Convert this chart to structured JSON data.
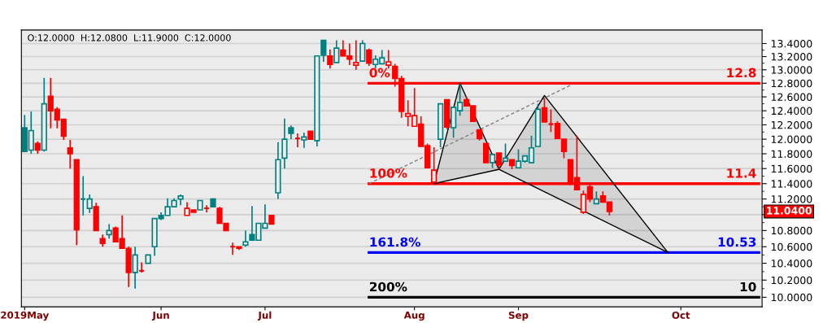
{
  "chart_data": {
    "type": "candlestick",
    "log": true,
    "grid": "y",
    "legend": false,
    "categories": [
      "2019May",
      null,
      null,
      null,
      null,
      null,
      null,
      null,
      null,
      null,
      null,
      null,
      null,
      null,
      null,
      null,
      null,
      null,
      null,
      null,
      null,
      "Jun",
      null,
      null,
      null,
      null,
      null,
      null,
      null,
      null,
      null,
      null,
      null,
      null,
      null,
      null,
      null,
      "Jul",
      null,
      null,
      null,
      null,
      null,
      null,
      null,
      null,
      null,
      null,
      null,
      null,
      null,
      null,
      null,
      null,
      null,
      null,
      null,
      null,
      null,
      null,
      "Aug",
      null,
      null,
      null,
      null,
      null,
      null,
      null,
      null,
      null,
      null,
      null,
      null,
      null,
      null,
      null,
      "Sep",
      null,
      null,
      null,
      null,
      null,
      null,
      null,
      null,
      null,
      null,
      null,
      null,
      null,
      null,
      null,
      null,
      null,
      null,
      null,
      null,
      null,
      null,
      null,
      null,
      "Oct",
      null,
      null,
      null,
      null,
      null,
      null,
      null,
      null,
      null,
      null,
      null,
      null
    ],
    "ohlc": [
      [
        12.16,
        12.34,
        11.83,
        11.83
      ],
      [
        11.85,
        12.39,
        11.8,
        12.12
      ],
      [
        11.94,
        11.97,
        11.8,
        11.85
      ],
      [
        11.85,
        12.88,
        11.83,
        12.5
      ],
      [
        12.61,
        12.88,
        12.15,
        12.4
      ],
      [
        12.42,
        12.45,
        12.15,
        12.27
      ],
      [
        12.28,
        12.28,
        11.99,
        12.04
      ],
      [
        11.88,
        11.99,
        11.6,
        11.8
      ],
      [
        11.72,
        11.72,
        10.62,
        10.81
      ],
      [
        11.2,
        11.5,
        10.99,
        11.2
      ],
      [
        11.08,
        11.26,
        11.02,
        11.2
      ],
      [
        11.1,
        11.15,
        10.8,
        10.8
      ],
      [
        10.7,
        10.75,
        10.6,
        10.64
      ],
      [
        10.75,
        10.88,
        10.7,
        10.8
      ],
      [
        10.83,
        10.85,
        10.66,
        10.66
      ],
      [
        10.7,
        10.99,
        10.58,
        10.58
      ],
      [
        10.58,
        10.6,
        10.12,
        10.29
      ],
      [
        10.29,
        10.6,
        10.1,
        10.5
      ],
      [
        10.31,
        10.41,
        10.29,
        10.31
      ],
      [
        10.4,
        10.5,
        10.4,
        10.5
      ],
      [
        10.6,
        10.95,
        10.49,
        10.95
      ],
      [
        10.99,
        11.03,
        10.93,
        10.95
      ],
      [
        10.99,
        11.21,
        10.99,
        11.1
      ],
      [
        11.1,
        11.21,
        11.1,
        11.18
      ],
      [
        11.2,
        11.26,
        11.12,
        11.24
      ],
      [
        10.99,
        11.16,
        10.99,
        11.08
      ],
      [
        11.06,
        11.06,
        11.03,
        11.03
      ],
      [
        11.06,
        11.18,
        11.06,
        11.18
      ],
      [
        11.08,
        11.12,
        11.03,
        11.08
      ],
      [
        11.2,
        11.21,
        11.1,
        11.1
      ],
      [
        11.08,
        11.1,
        10.89,
        10.89
      ],
      [
        10.89,
        10.89,
        10.8,
        10.8
      ],
      [
        10.6,
        10.65,
        10.5,
        10.6
      ],
      [
        10.6,
        10.6,
        10.56,
        10.58
      ],
      [
        10.62,
        10.8,
        10.6,
        10.66
      ],
      [
        10.75,
        11.11,
        10.68,
        10.68
      ],
      [
        10.68,
        10.89,
        10.68,
        10.89
      ],
      [
        10.83,
        11.13,
        10.83,
        10.89
      ],
      [
        10.99,
        10.99,
        10.88,
        10.88
      ],
      [
        11.28,
        11.96,
        11.2,
        11.72
      ],
      [
        11.74,
        12.29,
        11.6,
        12.0
      ],
      [
        12.16,
        12.19,
        12.0,
        12.08
      ],
      [
        12.01,
        12.08,
        11.89,
        12.01
      ],
      [
        11.99,
        12.09,
        11.88,
        12.03
      ],
      [
        12.11,
        12.11,
        12.0,
        12.0
      ],
      [
        11.98,
        13.21,
        11.9,
        13.21
      ],
      [
        13.45,
        13.45,
        13.12,
        13.22
      ],
      [
        13.21,
        13.31,
        13.02,
        13.08
      ],
      [
        13.11,
        13.45,
        13.11,
        13.33
      ],
      [
        13.3,
        13.45,
        13.2,
        13.21
      ],
      [
        13.21,
        13.4,
        13.07,
        13.16
      ],
      [
        13.07,
        13.45,
        13.0,
        13.11
      ],
      [
        13.13,
        13.45,
        13.13,
        13.4
      ],
      [
        13.3,
        13.32,
        13.06,
        13.1
      ],
      [
        13.08,
        13.22,
        13.02,
        13.16
      ],
      [
        13.09,
        13.3,
        13.08,
        13.18
      ],
      [
        13.07,
        13.3,
        13.02,
        13.12
      ],
      [
        13.05,
        13.09,
        12.75,
        12.87
      ],
      [
        12.87,
        12.91,
        12.3,
        12.39
      ],
      [
        12.32,
        12.55,
        12.18,
        12.36
      ],
      [
        12.18,
        12.73,
        12.18,
        12.33
      ],
      [
        12.21,
        12.32,
        11.9,
        11.9
      ],
      [
        11.91,
        11.94,
        11.61,
        11.61
      ],
      [
        11.42,
        11.89,
        11.4,
        11.58
      ],
      [
        12.0,
        12.5,
        11.89,
        12.5
      ],
      [
        12.56,
        12.56,
        12.14,
        12.17
      ],
      [
        12.16,
        12.45,
        12.02,
        12.45
      ],
      [
        12.4,
        12.8,
        12.33,
        12.52
      ],
      [
        12.56,
        12.6,
        12.47,
        12.47
      ],
      [
        12.47,
        12.47,
        12.25,
        12.25
      ],
      [
        12.13,
        12.13,
        11.98,
        12.01
      ],
      [
        11.94,
        11.94,
        11.68,
        11.68
      ],
      [
        11.68,
        11.79,
        11.61,
        11.79
      ],
      [
        11.81,
        11.81,
        11.59,
        11.65
      ],
      [
        11.7,
        11.94,
        11.7,
        11.74
      ],
      [
        11.72,
        11.72,
        11.59,
        11.64
      ],
      [
        11.61,
        11.86,
        11.61,
        11.7
      ],
      [
        11.7,
        11.77,
        11.68,
        11.77
      ],
      [
        11.68,
        12.05,
        11.68,
        11.88
      ],
      [
        11.9,
        12.5,
        11.9,
        12.42
      ],
      [
        12.44,
        12.58,
        12.24,
        12.24
      ],
      [
        12.21,
        12.42,
        12.1,
        12.21
      ],
      [
        12.22,
        12.25,
        12.0,
        12.01
      ],
      [
        12.0,
        12.0,
        11.74,
        11.83
      ],
      [
        11.72,
        11.72,
        11.38,
        11.41
      ],
      [
        11.48,
        12.05,
        11.32,
        11.32
      ],
      [
        11.03,
        11.31,
        11.01,
        11.26
      ],
      [
        11.36,
        11.39,
        11.16,
        11.2
      ],
      [
        11.14,
        11.3,
        11.14,
        11.2
      ],
      [
        11.24,
        11.3,
        11.16,
        11.16
      ],
      [
        11.16,
        11.16,
        10.99,
        11.04
      ],
      null,
      null,
      null,
      null,
      null,
      null,
      null,
      null,
      null,
      null,
      null,
      null,
      null,
      null,
      null,
      null,
      null,
      null,
      null,
      null,
      null,
      null,
      null
    ],
    "colors": [
      "#008080",
      "#008080",
      "#ff0000",
      "#008080",
      "#ff0000",
      "#ff0000",
      "#ff0000",
      "#ff0000",
      "#ff0000",
      "#008080",
      "#008080",
      "#ff0000",
      "#ff0000",
      "#008080",
      "#ff0000",
      "#ff0000",
      "#ff0000",
      "#008080",
      "#ff0000",
      "#008080",
      "#008080",
      "#008080",
      "#008080",
      "#008080",
      "#008080",
      "#ff0000",
      "#ff0000",
      "#008080",
      "#ff0000",
      "#008080",
      "#ff0000",
      "#ff0000",
      "#ff0000",
      "#ff0000",
      "#008080",
      "#008080",
      "#008080",
      "#008080",
      "#ff0000",
      "#008080",
      "#008080",
      "#008080",
      "#ff0000",
      "#008080",
      "#ff0000",
      "#008080",
      "#008080",
      "#ff0000",
      "#008080",
      "#ff0000",
      "#ff0000",
      "#ff0000",
      "#008080",
      "#ff0000",
      "#008080",
      "#008080",
      "#ff0000",
      "#ff0000",
      "#ff0000",
      "#ff0000",
      "#ff0000",
      "#ff0000",
      "#ff0000",
      "#ff0000",
      "#008080",
      "#ff0000",
      "#008080",
      "#008080",
      "#ff0000",
      "#ff0000",
      "#ff0000",
      "#ff0000",
      "#008080",
      "#ff0000",
      "#008080",
      "#ff0000",
      "#008080",
      "#008080",
      "#008080",
      "#008080",
      "#ff0000",
      "#ff0000",
      "#ff0000",
      "#ff0000",
      "#ff0000",
      "#ff0000",
      "#ff0000",
      "#ff0000",
      "#008080",
      "#ff0000",
      "#ff0000",
      null,
      null,
      null,
      null,
      null,
      null,
      null,
      null,
      null,
      null,
      null,
      null,
      null,
      null,
      null,
      null,
      null,
      null,
      null,
      null,
      null,
      null,
      null
    ],
    "series": [
      {
        "type": "line",
        "name": "0%",
        "color": "#ff0000",
        "values": [
          null,
          null,
          null,
          null,
          null,
          null,
          null,
          null,
          null,
          null,
          null,
          null,
          null,
          null,
          null,
          null,
          null,
          null,
          null,
          null,
          null,
          null,
          null,
          null,
          null,
          null,
          null,
          null,
          null,
          null,
          null,
          null,
          null,
          null,
          null,
          null,
          null,
          null,
          null,
          null,
          null,
          null,
          null,
          null,
          null,
          null,
          null,
          null,
          null,
          null,
          null,
          null,
          null,
          12.8,
          null,
          null,
          null,
          null,
          null,
          null,
          null,
          null,
          null,
          null,
          null,
          null,
          null,
          null,
          null,
          null,
          null,
          null,
          null,
          null,
          null,
          null,
          null,
          null,
          null,
          null,
          null,
          null,
          null,
          null,
          null,
          null,
          null,
          null,
          null,
          null,
          null,
          null,
          null,
          null,
          null,
          null,
          null,
          null,
          null,
          null,
          null,
          null,
          null,
          null,
          null,
          null,
          null,
          null,
          null,
          null,
          null,
          null,
          null,
          12.8
        ],
        "value_labels": [
          null,
          null,
          null,
          null,
          null,
          null,
          null,
          null,
          null,
          null,
          null,
          null,
          null,
          null,
          null,
          null,
          null,
          null,
          null,
          null,
          null,
          null,
          null,
          null,
          null,
          null,
          null,
          null,
          null,
          null,
          null,
          null,
          null,
          null,
          null,
          null,
          null,
          null,
          null,
          null,
          null,
          null,
          null,
          null,
          null,
          null,
          null,
          null,
          null,
          null,
          null,
          null,
          null,
          null,
          null,
          null,
          null,
          null,
          null,
          null,
          null,
          null,
          null,
          null,
          null,
          null,
          null,
          null,
          null,
          null,
          null,
          null,
          null,
          null,
          null,
          null,
          null,
          null,
          null,
          null,
          null,
          null,
          null,
          null,
          null,
          null,
          null,
          null,
          null,
          null,
          null,
          null,
          null,
          null,
          null,
          null,
          null,
          null,
          null,
          null,
          null,
          null,
          null,
          null,
          null,
          null,
          null,
          null,
          null,
          null,
          null,
          null,
          null,
          "12.8"
        ]
      },
      {
        "type": "line",
        "name": "100%",
        "color": "#ff0000",
        "values": [
          null,
          null,
          null,
          null,
          null,
          null,
          null,
          null,
          null,
          null,
          null,
          null,
          null,
          null,
          null,
          null,
          null,
          null,
          null,
          null,
          null,
          null,
          null,
          null,
          null,
          null,
          null,
          null,
          null,
          null,
          null,
          null,
          null,
          null,
          null,
          null,
          null,
          null,
          null,
          null,
          null,
          null,
          null,
          null,
          null,
          null,
          null,
          null,
          null,
          null,
          null,
          null,
          null,
          11.4,
          null,
          null,
          null,
          null,
          null,
          null,
          null,
          null,
          null,
          null,
          null,
          null,
          null,
          null,
          null,
          null,
          null,
          null,
          null,
          null,
          null,
          null,
          null,
          null,
          null,
          null,
          null,
          null,
          null,
          null,
          null,
          null,
          null,
          null,
          null,
          null,
          null,
          null,
          null,
          null,
          null,
          null,
          null,
          null,
          null,
          null,
          null,
          null,
          null,
          null,
          null,
          null,
          null,
          null,
          null,
          null,
          null,
          null,
          null,
          11.4
        ],
        "value_labels": [
          null,
          null,
          null,
          null,
          null,
          null,
          null,
          null,
          null,
          null,
          null,
          null,
          null,
          null,
          null,
          null,
          null,
          null,
          null,
          null,
          null,
          null,
          null,
          null,
          null,
          null,
          null,
          null,
          null,
          null,
          null,
          null,
          null,
          null,
          null,
          null,
          null,
          null,
          null,
          null,
          null,
          null,
          null,
          null,
          null,
          null,
          null,
          null,
          null,
          null,
          null,
          null,
          null,
          null,
          null,
          null,
          null,
          null,
          null,
          null,
          null,
          null,
          null,
          null,
          null,
          null,
          null,
          null,
          null,
          null,
          null,
          null,
          null,
          null,
          null,
          null,
          null,
          null,
          null,
          null,
          null,
          null,
          null,
          null,
          null,
          null,
          null,
          null,
          null,
          null,
          null,
          null,
          null,
          null,
          null,
          null,
          null,
          null,
          null,
          null,
          null,
          null,
          null,
          null,
          null,
          null,
          null,
          null,
          null,
          null,
          null,
          null,
          null,
          "11.4"
        ]
      },
      {
        "type": "line",
        "name": "161.8%",
        "color": "#0000ff",
        "values": [
          null,
          null,
          null,
          null,
          null,
          null,
          null,
          null,
          null,
          null,
          null,
          null,
          null,
          null,
          null,
          null,
          null,
          null,
          null,
          null,
          null,
          null,
          null,
          null,
          null,
          null,
          null,
          null,
          null,
          null,
          null,
          null,
          null,
          null,
          null,
          null,
          null,
          null,
          null,
          null,
          null,
          null,
          null,
          null,
          null,
          null,
          null,
          null,
          null,
          null,
          null,
          null,
          null,
          10.53,
          null,
          null,
          null,
          null,
          null,
          null,
          null,
          null,
          null,
          null,
          null,
          null,
          null,
          null,
          null,
          null,
          null,
          null,
          null,
          null,
          null,
          null,
          null,
          null,
          null,
          null,
          null,
          null,
          null,
          null,
          null,
          null,
          null,
          null,
          null,
          null,
          null,
          null,
          null,
          null,
          null,
          null,
          null,
          null,
          null,
          null,
          null,
          null,
          null,
          null,
          null,
          null,
          null,
          null,
          null,
          null,
          null,
          null,
          null,
          10.53
        ],
        "value_labels": [
          null,
          null,
          null,
          null,
          null,
          null,
          null,
          null,
          null,
          null,
          null,
          null,
          null,
          null,
          null,
          null,
          null,
          null,
          null,
          null,
          null,
          null,
          null,
          null,
          null,
          null,
          null,
          null,
          null,
          null,
          null,
          null,
          null,
          null,
          null,
          null,
          null,
          null,
          null,
          null,
          null,
          null,
          null,
          null,
          null,
          null,
          null,
          null,
          null,
          null,
          null,
          null,
          null,
          null,
          null,
          null,
          null,
          null,
          null,
          null,
          null,
          null,
          null,
          null,
          null,
          null,
          null,
          null,
          null,
          null,
          null,
          null,
          null,
          null,
          null,
          null,
          null,
          null,
          null,
          null,
          null,
          null,
          null,
          null,
          null,
          null,
          null,
          null,
          null,
          null,
          null,
          null,
          null,
          null,
          null,
          null,
          null,
          null,
          null,
          null,
          null,
          null,
          null,
          null,
          null,
          null,
          null,
          null,
          null,
          null,
          null,
          null,
          null,
          "10.53"
        ]
      },
      {
        "type": "line",
        "name": "200%",
        "color": "#000000",
        "values": [
          null,
          null,
          null,
          null,
          null,
          null,
          null,
          null,
          null,
          null,
          null,
          null,
          null,
          null,
          null,
          null,
          null,
          null,
          null,
          null,
          null,
          null,
          null,
          null,
          null,
          null,
          null,
          null,
          null,
          null,
          null,
          null,
          null,
          null,
          null,
          null,
          null,
          null,
          null,
          null,
          null,
          null,
          null,
          null,
          null,
          null,
          null,
          null,
          null,
          null,
          null,
          null,
          null,
          10,
          null,
          null,
          null,
          null,
          null,
          null,
          null,
          null,
          null,
          null,
          null,
          null,
          null,
          null,
          null,
          null,
          null,
          null,
          null,
          null,
          null,
          null,
          null,
          null,
          null,
          null,
          null,
          null,
          null,
          null,
          null,
          null,
          null,
          null,
          null,
          null,
          null,
          null,
          null,
          null,
          null,
          null,
          null,
          null,
          null,
          null,
          null,
          null,
          null,
          null,
          null,
          null,
          null,
          null,
          null,
          null,
          null,
          null,
          null,
          10
        ],
        "value_labels": [
          null,
          null,
          null,
          null,
          null,
          null,
          null,
          null,
          null,
          null,
          null,
          null,
          null,
          null,
          null,
          null,
          null,
          null,
          null,
          null,
          null,
          null,
          null,
          null,
          null,
          null,
          null,
          null,
          null,
          null,
          null,
          null,
          null,
          null,
          null,
          null,
          null,
          null,
          null,
          null,
          null,
          null,
          null,
          null,
          null,
          null,
          null,
          null,
          null,
          null,
          null,
          null,
          null,
          null,
          null,
          null,
          null,
          null,
          null,
          null,
          null,
          null,
          null,
          null,
          null,
          null,
          null,
          null,
          null,
          null,
          null,
          null,
          null,
          null,
          null,
          null,
          null,
          null,
          null,
          null,
          null,
          null,
          null,
          null,
          null,
          null,
          null,
          null,
          null,
          null,
          null,
          null,
          null,
          null,
          null,
          null,
          null,
          null,
          null,
          null,
          null,
          null,
          null,
          null,
          null,
          null,
          null,
          null,
          null,
          null,
          null,
          null,
          null,
          "10"
        ]
      },
      {
        "type": "line",
        "color": "#808080",
        "line_style": "dashed",
        "values": [
          null,
          null,
          null,
          null,
          null,
          null,
          null,
          null,
          null,
          null,
          null,
          null,
          null,
          null,
          null,
          null,
          null,
          null,
          null,
          null,
          null,
          null,
          null,
          null,
          null,
          null,
          null,
          null,
          null,
          null,
          null,
          null,
          null,
          null,
          null,
          null,
          null,
          null,
          null,
          null,
          null,
          null,
          null,
          null,
          null,
          null,
          null,
          null,
          null,
          null,
          null,
          null,
          null,
          11.4,
          null,
          null,
          null,
          null,
          null,
          null,
          null,
          null,
          null,
          null,
          null,
          null,
          null,
          null,
          null,
          null,
          null,
          null,
          null,
          null,
          null,
          null,
          null,
          null,
          null,
          null,
          null,
          null,
          null,
          null,
          12.77,
          null,
          null,
          null,
          null,
          null,
          null,
          null,
          null,
          null,
          null,
          null,
          null,
          null,
          null,
          null,
          null,
          null,
          null,
          null,
          null,
          null,
          null,
          null,
          null,
          null,
          null,
          null,
          null,
          null
        ]
      },
      {
        "type": "line",
        "color": "#000000",
        "values": [
          null,
          null,
          null,
          null,
          null,
          null,
          null,
          null,
          null,
          null,
          null,
          null,
          null,
          null,
          null,
          null,
          null,
          null,
          null,
          null,
          null,
          null,
          null,
          null,
          null,
          null,
          null,
          null,
          null,
          null,
          null,
          null,
          null,
          null,
          null,
          null,
          null,
          null,
          null,
          null,
          null,
          null,
          null,
          null,
          null,
          null,
          null,
          null,
          null,
          null,
          null,
          null,
          null,
          null,
          null,
          null,
          null,
          null,
          null,
          null,
          null,
          null,
          null,
          11.4,
          null,
          null,
          null,
          12.8,
          null,
          null,
          null,
          null,
          null,
          11.59,
          null,
          null,
          null,
          null,
          null,
          null,
          null,
          null,
          null,
          null,
          null,
          null,
          null,
          null,
          null,
          null,
          null,
          null,
          null,
          null,
          null,
          null,
          null,
          null,
          null,
          null,
          null,
          null,
          null,
          null,
          null,
          null,
          null,
          null,
          null,
          null,
          null,
          null,
          null,
          null
        ]
      },
      {
        "type": "line",
        "color": "#000000",
        "values": [
          null,
          null,
          null,
          null,
          null,
          null,
          null,
          null,
          null,
          null,
          null,
          null,
          null,
          null,
          null,
          null,
          null,
          null,
          null,
          null,
          null,
          null,
          null,
          null,
          null,
          null,
          null,
          null,
          null,
          null,
          null,
          null,
          null,
          null,
          null,
          null,
          null,
          null,
          null,
          null,
          null,
          null,
          null,
          null,
          null,
          null,
          null,
          null,
          null,
          null,
          null,
          null,
          null,
          null,
          null,
          null,
          null,
          null,
          null,
          null,
          null,
          null,
          null,
          11.4,
          null,
          null,
          null,
          null,
          null,
          null,
          null,
          null,
          null,
          11.59,
          null,
          null,
          null,
          null,
          null,
          null,
          null,
          null,
          null,
          null,
          null,
          null,
          null,
          null,
          null,
          null,
          null,
          null,
          null,
          null,
          null,
          null,
          null,
          null,
          null,
          null,
          null,
          null,
          null,
          null,
          null,
          null,
          null,
          null,
          null,
          null,
          null,
          null,
          null,
          null
        ]
      },
      {
        "type": "line",
        "color": "#000000",
        "values": [
          null,
          null,
          null,
          null,
          null,
          null,
          null,
          null,
          null,
          null,
          null,
          null,
          null,
          null,
          null,
          null,
          null,
          null,
          null,
          null,
          null,
          null,
          null,
          null,
          null,
          null,
          null,
          null,
          null,
          null,
          null,
          null,
          null,
          null,
          null,
          null,
          null,
          null,
          null,
          null,
          null,
          null,
          null,
          null,
          null,
          null,
          null,
          null,
          null,
          null,
          null,
          null,
          null,
          null,
          null,
          null,
          null,
          null,
          null,
          null,
          null,
          null,
          null,
          null,
          null,
          null,
          null,
          null,
          null,
          null,
          null,
          null,
          null,
          11.59,
          null,
          null,
          null,
          null,
          null,
          null,
          12.62,
          null,
          null,
          null,
          null,
          null,
          null,
          null,
          null,
          null,
          null,
          null,
          null,
          null,
          null,
          null,
          null,
          null,
          null,
          10.53,
          null,
          null,
          null,
          null,
          null,
          null,
          null,
          null,
          null,
          null,
          null,
          null,
          null,
          null
        ]
      },
      {
        "type": "line",
        "color": "#000000",
        "values": [
          null,
          null,
          null,
          null,
          null,
          null,
          null,
          null,
          null,
          null,
          null,
          null,
          null,
          null,
          null,
          null,
          null,
          null,
          null,
          null,
          null,
          null,
          null,
          null,
          null,
          null,
          null,
          null,
          null,
          null,
          null,
          null,
          null,
          null,
          null,
          null,
          null,
          null,
          null,
          null,
          null,
          null,
          null,
          null,
          null,
          null,
          null,
          null,
          null,
          null,
          null,
          null,
          null,
          null,
          null,
          null,
          null,
          null,
          null,
          null,
          null,
          null,
          null,
          null,
          null,
          null,
          null,
          null,
          null,
          null,
          null,
          null,
          null,
          11.59,
          null,
          null,
          null,
          null,
          null,
          null,
          null,
          null,
          null,
          null,
          null,
          null,
          null,
          null,
          null,
          null,
          null,
          null,
          null,
          null,
          null,
          null,
          null,
          null,
          null,
          10.53,
          null,
          null,
          null,
          null,
          null,
          null,
          null,
          null,
          null,
          null,
          null,
          null,
          null,
          null
        ]
      }
    ],
    "ylim": [
      9.89,
      13.61
    ],
    "yticks": [
      {
        "value": 10.0,
        "label": "10.0000"
      },
      {
        "value": 10.1,
        "label": null
      },
      {
        "value": 10.2,
        "label": "10.2000"
      },
      {
        "value": 10.3,
        "label": null
      },
      {
        "value": 10.4,
        "label": "10.4000"
      },
      {
        "value": 10.5,
        "label": null
      },
      {
        "value": 10.6,
        "label": "10.6000"
      },
      {
        "value": 10.7,
        "label": null
      },
      {
        "value": 10.8,
        "label": "10.8000"
      },
      {
        "value": 10.9,
        "label": null
      },
      {
        "value": 11.0,
        "label": null
      },
      {
        "value": 11.1,
        "label": null
      },
      {
        "value": 11.2,
        "label": "11.2000"
      },
      {
        "value": 11.3,
        "label": null
      },
      {
        "value": 11.4,
        "label": "11.4000"
      },
      {
        "value": 11.5,
        "label": null
      },
      {
        "value": 11.6,
        "label": "11.6000"
      },
      {
        "value": 11.7,
        "label": null
      },
      {
        "value": 11.8,
        "label": "11.8000"
      },
      {
        "value": 11.9,
        "label": null
      },
      {
        "value": 12.0,
        "label": "12.0000"
      },
      {
        "value": 12.1,
        "label": null
      },
      {
        "value": 12.2,
        "label": "12.2000"
      },
      {
        "value": 12.3,
        "label": null
      },
      {
        "value": 12.4,
        "label": "12.4000"
      },
      {
        "value": 12.5,
        "label": null
      },
      {
        "value": 12.6,
        "label": "12.6000"
      },
      {
        "value": 12.7,
        "label": null
      },
      {
        "value": 12.8,
        "label": "12.8000"
      },
      {
        "value": 12.9,
        "label": null
      },
      {
        "value": 13.0,
        "label": "13.0000"
      },
      {
        "value": 13.1,
        "label": null
      },
      {
        "value": 13.2,
        "label": "13.2000"
      },
      {
        "value": 13.3,
        "label": null
      },
      {
        "value": 13.4,
        "label": "13.4000"
      }
    ],
    "annotations": [
      "O:12.0000  H:12.0800  L:11.9000  C:12.0000",
      "11.0400"
    ]
  }
}
